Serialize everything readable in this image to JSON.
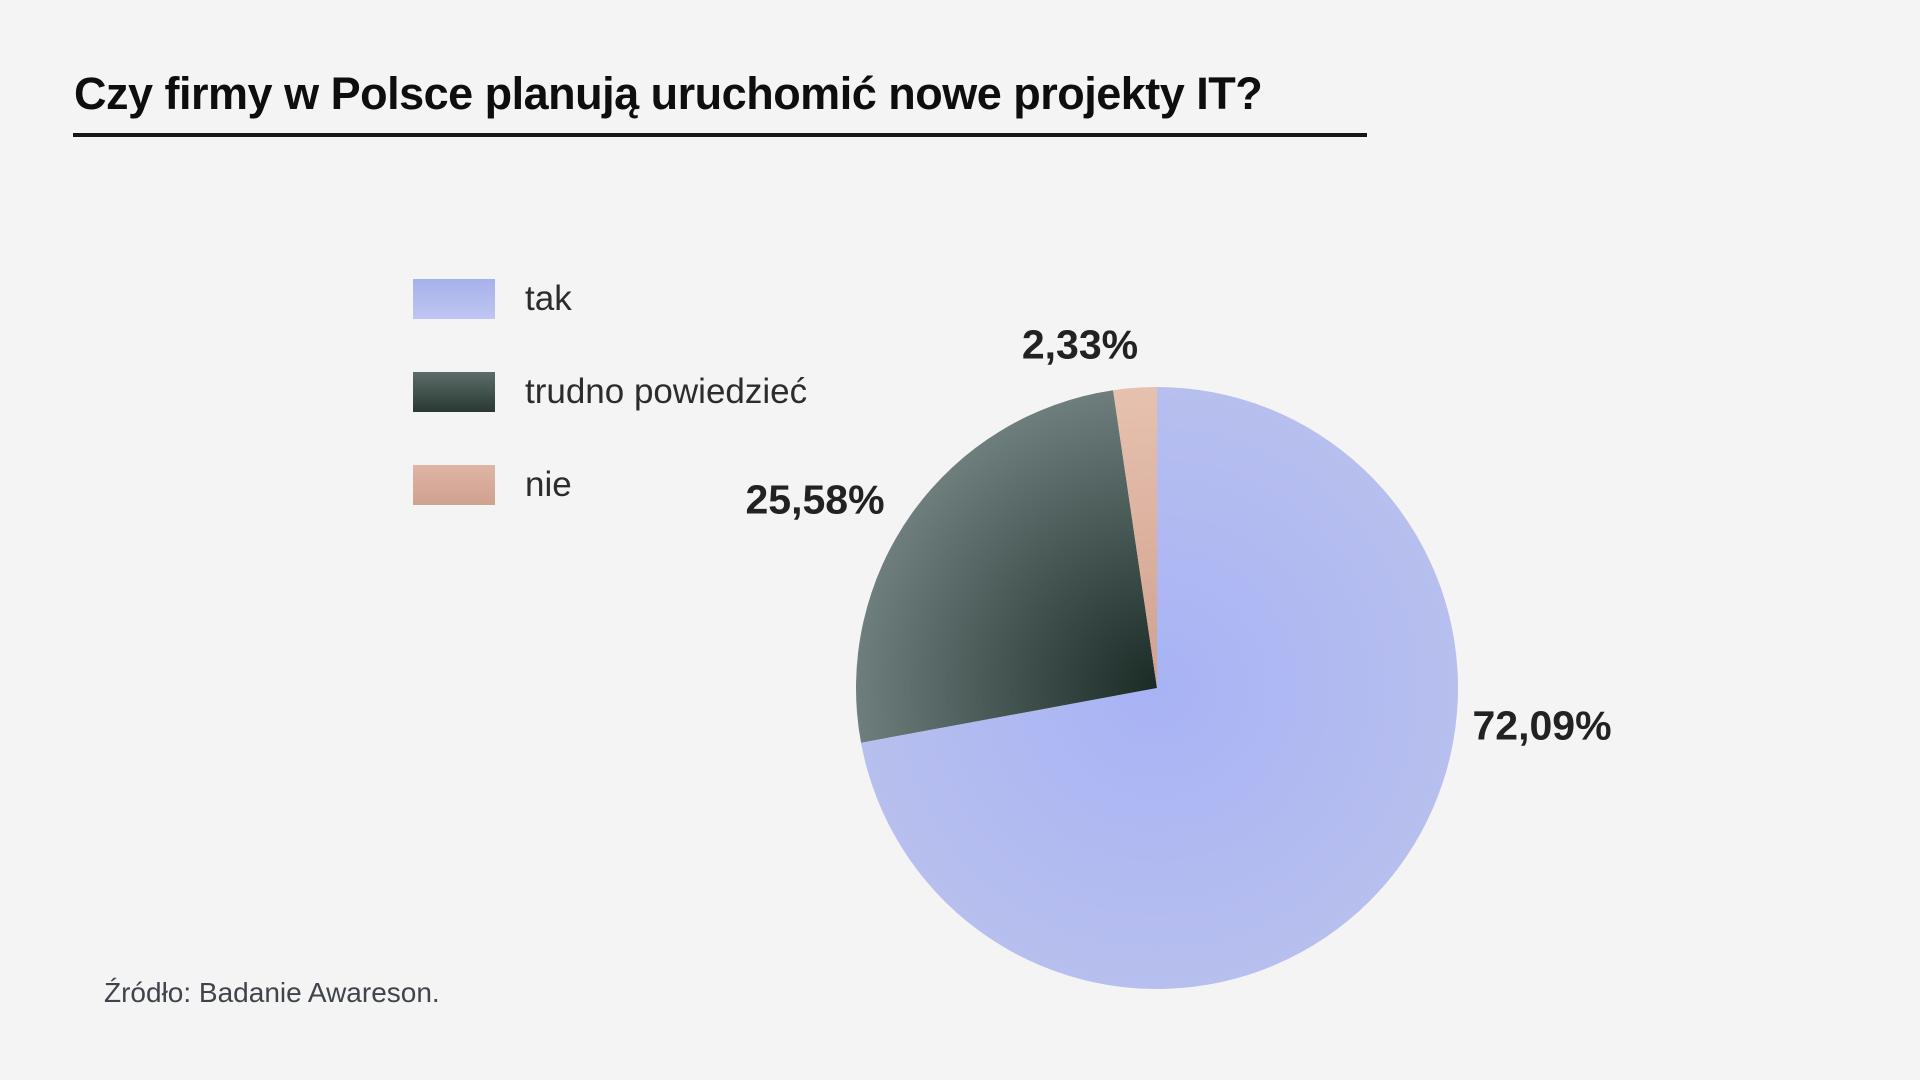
{
  "page": {
    "background": "#f4f4f4"
  },
  "chart_data": {
    "type": "pie",
    "title": "Czy firmy w Polsce planują uruchomić nowe projekty IT?",
    "source": "Źródło: Badanie Awareson.",
    "legend_position": "left",
    "start_angle_deg": 0,
    "direction": "clockwise",
    "segments": [
      {
        "key": "tak",
        "label": "tak",
        "value": 72.09,
        "display": "72,09%",
        "colors": {
          "pie_center": "#a8b3f5",
          "pie_edge": "#b7bfee",
          "swatch_top": "#a7b1ea",
          "swatch_bottom": "#bfc6f3"
        }
      },
      {
        "key": "trudno-powiedziec",
        "label": "trudno powiedzieć",
        "value": 25.58,
        "display": "25,58%",
        "colors": {
          "pie_center": "#1a2a25",
          "pie_edge": "#6e7e7d",
          "swatch_top": "#5c6d69",
          "swatch_bottom": "#293833"
        }
      },
      {
        "key": "nie",
        "label": "nie",
        "value": 2.33,
        "display": "2,33%",
        "colors": {
          "pie_center": "#d0a18e",
          "pie_edge": "#e7c1af",
          "swatch_top": "#deb5a4",
          "swatch_bottom": "#d0a190"
        }
      }
    ],
    "text_colors": {
      "title": "#0e0e0e",
      "percent_labels": "#222222",
      "legend": "#2c2c2c",
      "source": "#3f444b"
    }
  }
}
